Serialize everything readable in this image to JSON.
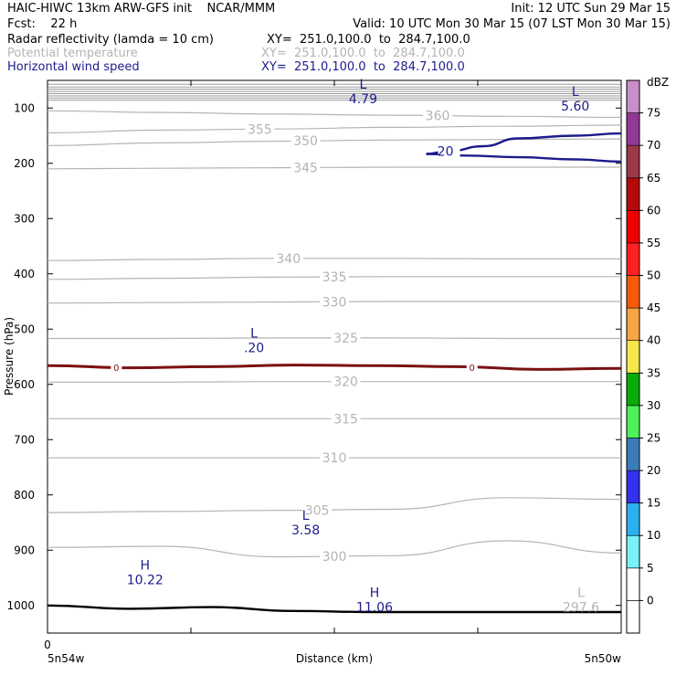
{
  "header": {
    "line1_left": "HAIC-HIWC 13km ARW-GFS init    NCAR/MMM",
    "line1_right": "Init: 12 UTC Sun 29 Mar 15",
    "line2_left": "Fcst:    22 h",
    "line2_right": "Valid: 10 UTC Mon 30 Mar 15 (07 LST Mon 30 Mar 15)",
    "fields": [
      {
        "name": "Radar reflectivity (lamda = 10 cm)",
        "xy": "XY=  251.0,100.0  to  284.7,100.0",
        "color": "#000000"
      },
      {
        "name": "Potential temperature",
        "xy": "XY=  251.0,100.0  to  284.7,100.0",
        "color": "#b4b4b4"
      },
      {
        "name": "Horizontal wind speed",
        "xy": "XY=  251.0,100.0  to  284.7,100.0",
        "color": "#1c1c8c"
      }
    ]
  },
  "chart_data": {
    "type": "cross-section",
    "ylabel": "Pressure (hPa)",
    "xlabel": "Distance (km)",
    "y_ticks": [
      100,
      200,
      300,
      400,
      500,
      600,
      700,
      800,
      900,
      1000
    ],
    "y_tick_labels": [
      "100",
      "200",
      "300",
      "400",
      "500",
      "600",
      "700",
      "800",
      "900",
      "1000"
    ],
    "ylim": [
      1050,
      50
    ],
    "x_start_label": "5n54w",
    "x_end_label": "5n50w",
    "x_origin_label": "0",
    "x_tick_count": 5,
    "theta_contours": [
      {
        "value": 360,
        "label": "360",
        "y": [
          105,
          108,
          111,
          113,
          115,
          117
        ]
      },
      {
        "value": 355,
        "label": "355",
        "y": [
          145,
          140,
          138,
          135,
          133,
          131
        ]
      },
      {
        "value": 350,
        "label": "350",
        "y": [
          168,
          163,
          160,
          158,
          157,
          156
        ]
      },
      {
        "value": 345,
        "label": "345",
        "y": [
          210,
          209,
          208,
          207,
          207,
          207
        ]
      },
      {
        "value": 340,
        "label": "340",
        "y": [
          376,
          374,
          372,
          372,
          373,
          373
        ]
      },
      {
        "value": 335,
        "label": "335",
        "y": [
          410,
          408,
          406,
          405,
          405,
          405
        ]
      },
      {
        "value": 330,
        "label": "330",
        "y": [
          453,
          452,
          451,
          450,
          450,
          450
        ]
      },
      {
        "value": 325,
        "label": "325",
        "y": [
          517,
          517,
          516,
          516,
          517,
          517
        ]
      },
      {
        "value": 320,
        "label": "320",
        "y": [
          596,
          596,
          595,
          595,
          595,
          595
        ]
      },
      {
        "value": 315,
        "label": "315",
        "y": [
          662,
          662,
          662,
          662,
          662,
          662
        ]
      },
      {
        "value": 310,
        "label": "310",
        "y": [
          733,
          733,
          733,
          733,
          733,
          733
        ]
      },
      {
        "value": 305,
        "label": "305",
        "y": [
          832,
          830,
          828,
          826,
          805,
          808
        ]
      },
      {
        "value": 300,
        "label": "300",
        "y": [
          895,
          893,
          912,
          910,
          883,
          905
        ]
      }
    ],
    "theta_label_positions": [
      0.68,
      0.37,
      0.45,
      0.45,
      0.42,
      0.5,
      0.5,
      0.52,
      0.52,
      0.52,
      0.5,
      0.47,
      0.5
    ],
    "wind_contour": {
      "label": "20",
      "upper": {
        "x": [
          0.66,
          0.7,
          0.76,
          0.82,
          0.92,
          1.0
        ],
        "y": [
          183,
          178,
          169,
          155,
          150,
          146
        ]
      },
      "lower": {
        "x": [
          0.66,
          0.73,
          0.82,
          0.92,
          1.0
        ],
        "y": [
          183,
          186,
          189,
          193,
          197
        ]
      }
    },
    "zero_contour": {
      "label": "0",
      "y": [
        566,
        570,
        568,
        565,
        566,
        568,
        573,
        571
      ],
      "label_positions": [
        0.12,
        0.74
      ]
    },
    "surface": {
      "y": [
        1000,
        1006,
        1003,
        1010,
        1012,
        1012,
        1012,
        1012
      ]
    },
    "top_hatch_levels": [
      57,
      62,
      66,
      70,
      74,
      78,
      82,
      86
    ],
    "annotations": [
      {
        "type": "L",
        "value": "4.79",
        "x": 0.55,
        "y": 65,
        "color": "#1c1c8c"
      },
      {
        "type": "L",
        "value": "5.60",
        "x": 0.92,
        "y": 78,
        "color": "#1c1c8c"
      },
      {
        "type": "L",
        "value": ".20",
        "x": 0.36,
        "y": 515,
        "color": "#1c1c8c"
      },
      {
        "type": "L",
        "value": "3.58",
        "x": 0.45,
        "y": 845,
        "color": "#1c1c8c"
      },
      {
        "type": "H",
        "value": "10.22",
        "x": 0.17,
        "y": 935,
        "color": "#1c1c8c"
      },
      {
        "type": "H",
        "value": "11.06",
        "x": 0.57,
        "y": 985,
        "color": "#1c1c8c"
      },
      {
        "type": "L",
        "value": "297.6",
        "x": 0.93,
        "y": 985,
        "color": "#b4b4b4"
      }
    ],
    "colorbar": {
      "unit": "dBZ",
      "levels": [
        -5,
        0,
        5,
        10,
        15,
        20,
        25,
        30,
        35,
        40,
        45,
        50,
        55,
        60,
        65,
        70,
        75,
        80
      ],
      "labels": [
        "0",
        "5",
        "10",
        "15",
        "20",
        "25",
        "30",
        "35",
        "40",
        "45",
        "50",
        "55",
        "60",
        "65",
        "70",
        "75"
      ],
      "colors": [
        "#ffffff",
        "#ffffff",
        "#7af3f8",
        "#2bb0f0",
        "#3232ee",
        "#3a7cb8",
        "#4ff05a",
        "#0aaa0a",
        "#f5e64b",
        "#f8a444",
        "#f85a0a",
        "#ff2020",
        "#f00000",
        "#b40a0a",
        "#9b3a4a",
        "#923896",
        "#c98fc9"
      ]
    }
  }
}
